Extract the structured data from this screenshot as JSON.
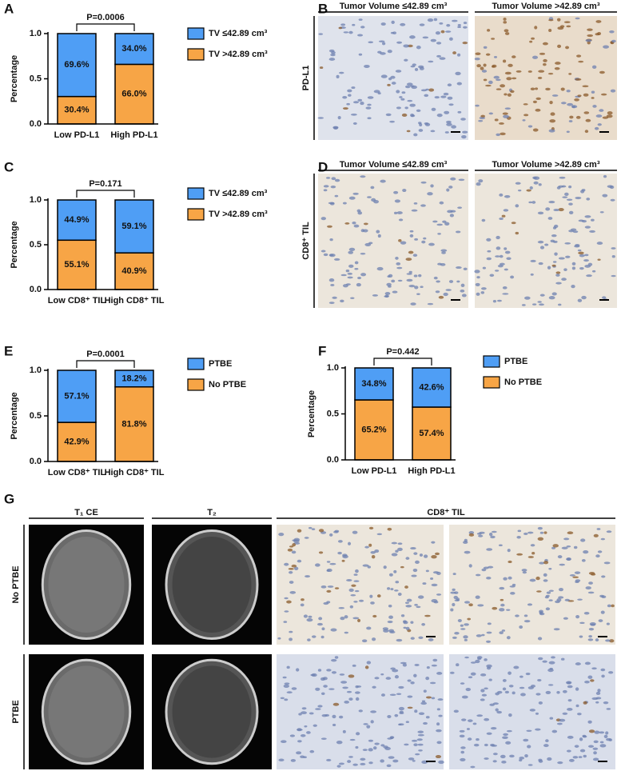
{
  "chart_data": [
    {
      "type": "bar",
      "panel_label": "A",
      "y_label": "Percentage",
      "annotation": "P=0.0006",
      "categories": [
        "Low PD-L1",
        "High PD-L1"
      ],
      "series": [
        {
          "name": "TV ≤42.89 cm³",
          "color": "#4f9ef5",
          "values": [
            0.696,
            0.34
          ],
          "value_labels": [
            "69.6%",
            "34.0%"
          ]
        },
        {
          "name": "TV >42.89 cm³",
          "color": "#f7a546",
          "values": [
            0.304,
            0.66
          ],
          "value_labels": [
            "30.4%",
            "66.0%"
          ]
        }
      ],
      "ylim": [
        0,
        1
      ],
      "yticks": [
        {
          "value": 0,
          "label": "0.0"
        },
        0.5,
        {
          "value": 1,
          "label": "1.0"
        }
      ]
    },
    {
      "type": "bar",
      "panel_label": "C",
      "y_label": "Percentage",
      "annotation": "P=0.171",
      "categories": [
        "Low CD8⁺ TIL",
        "High CD8⁺ TIL"
      ],
      "series": [
        {
          "name": "TV ≤42.89 cm³",
          "color": "#4f9ef5",
          "values": [
            0.449,
            0.591
          ],
          "value_labels": [
            "44.9%",
            "59.1%"
          ]
        },
        {
          "name": "TV >42.89 cm³",
          "color": "#f7a546",
          "values": [
            0.551,
            0.409
          ],
          "value_labels": [
            "55.1%",
            "40.9%"
          ]
        }
      ],
      "ylim": [
        0,
        1
      ],
      "yticks": [
        {
          "value": 0,
          "label": "0.0"
        },
        0.5,
        {
          "value": 1,
          "label": "1.0"
        }
      ]
    },
    {
      "type": "bar",
      "panel_label": "E",
      "y_label": "Percentage",
      "annotation": "P=0.0001",
      "categories": [
        "Low CD8⁺ TIL",
        "High CD8⁺ TIL"
      ],
      "series": [
        {
          "name": "PTBE",
          "color": "#4f9ef5",
          "values": [
            0.571,
            0.182
          ],
          "value_labels": [
            "57.1%",
            "18.2%"
          ]
        },
        {
          "name": "No PTBE",
          "color": "#f7a546",
          "values": [
            0.429,
            0.818
          ],
          "value_labels": [
            "42.9%",
            "81.8%"
          ]
        }
      ],
      "ylim": [
        0,
        1
      ],
      "yticks": [
        {
          "value": 0,
          "label": "0.0"
        },
        0.5,
        {
          "value": 1,
          "label": "1.0"
        }
      ]
    },
    {
      "type": "bar",
      "panel_label": "F",
      "y_label": "Percentage",
      "annotation": "P=0.442",
      "categories": [
        "Low PD-L1",
        "High PD-L1"
      ],
      "series": [
        {
          "name": "PTBE",
          "color": "#4f9ef5",
          "values": [
            0.348,
            0.426
          ],
          "value_labels": [
            "34.8%",
            "42.6%"
          ]
        },
        {
          "name": "No PTBE",
          "color": "#f7a546",
          "values": [
            0.652,
            0.574
          ],
          "value_labels": [
            "65.2%",
            "57.4%"
          ]
        }
      ],
      "ylim": [
        0,
        1
      ],
      "yticks": [
        {
          "value": 0,
          "label": "0.0"
        },
        0.5,
        {
          "value": 1,
          "label": "1.0"
        }
      ]
    }
  ],
  "panels": {
    "B": {
      "label": "B",
      "columns": [
        "Tumor Volume ≤42.89 cm³",
        "Tumor Volume >42.89 cm³"
      ],
      "row": "PD-L1"
    },
    "D": {
      "label": "D",
      "columns": [
        "Tumor Volume ≤42.89 cm³",
        "Tumor Volume >42.89 cm³"
      ],
      "row": "CD8⁺ TIL"
    },
    "G": {
      "label": "G",
      "columns": [
        "T₁ CE",
        "T₂",
        "CD8⁺ TIL"
      ],
      "rows": [
        "No PTBE",
        "PTBE"
      ]
    }
  }
}
